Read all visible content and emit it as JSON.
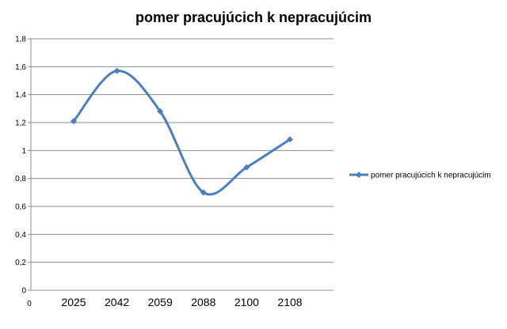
{
  "chart_data": {
    "type": "line",
    "title": "pomer pracujúcich k nepracujúcim",
    "categories": [
      "2025",
      "2042",
      "2059",
      "2088",
      "2100",
      "2108"
    ],
    "series": [
      {
        "name": "pomer pracujúcich k nepracujúcim",
        "values": [
          1.21,
          1.57,
          1.28,
          0.7,
          0.88,
          1.08
        ],
        "color": "#4a7ebf",
        "smooth": true,
        "marker": "diamond"
      }
    ],
    "ylim": [
      0,
      1.8
    ],
    "yticks": [
      "0",
      "0,2",
      "0,4",
      "0,6",
      "0,8",
      "1",
      "1,2",
      "1,4",
      "1,6",
      "1,8"
    ],
    "x_origin_label": "0",
    "grid": true,
    "legend": "right"
  }
}
